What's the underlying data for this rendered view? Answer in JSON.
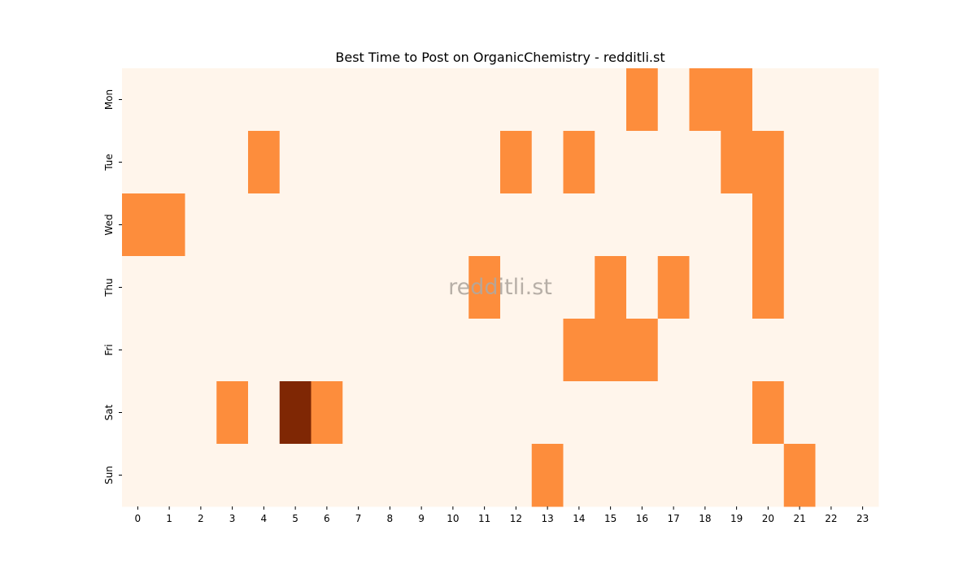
{
  "chart_data": {
    "type": "heatmap",
    "title": "Best Time to Post on OrganicChemistry - redditli.st",
    "watermark": "redditli.st",
    "x_categories": [
      "0",
      "1",
      "2",
      "3",
      "4",
      "5",
      "6",
      "7",
      "8",
      "9",
      "10",
      "11",
      "12",
      "13",
      "14",
      "15",
      "16",
      "17",
      "18",
      "19",
      "20",
      "21",
      "22",
      "23"
    ],
    "y_categories": [
      "Mon",
      "Tue",
      "Wed",
      "Thu",
      "Fri",
      "Sat",
      "Sun"
    ],
    "values": [
      [
        0,
        0,
        0,
        0,
        0,
        0,
        0,
        0,
        0,
        0,
        0,
        0,
        0,
        0,
        0,
        0,
        1,
        0,
        1,
        1,
        0,
        0,
        0,
        0
      ],
      [
        0,
        0,
        0,
        0,
        1,
        0,
        0,
        0,
        0,
        0,
        0,
        0,
        1,
        0,
        1,
        0,
        0,
        0,
        0,
        1,
        1,
        0,
        0,
        0
      ],
      [
        1,
        1,
        0,
        0,
        0,
        0,
        0,
        0,
        0,
        0,
        0,
        0,
        0,
        0,
        0,
        0,
        0,
        0,
        0,
        0,
        1,
        0,
        0,
        0
      ],
      [
        0,
        0,
        0,
        0,
        0,
        0,
        0,
        0,
        0,
        0,
        0,
        1,
        0,
        0,
        0,
        1,
        0,
        1,
        0,
        0,
        1,
        0,
        0,
        0
      ],
      [
        0,
        0,
        0,
        0,
        0,
        0,
        0,
        0,
        0,
        0,
        0,
        0,
        0,
        0,
        1,
        1,
        1,
        0,
        0,
        0,
        0,
        0,
        0,
        0
      ],
      [
        0,
        0,
        0,
        1,
        0,
        2,
        1,
        0,
        0,
        0,
        0,
        0,
        0,
        0,
        0,
        0,
        0,
        0,
        0,
        0,
        1,
        0,
        0,
        0
      ],
      [
        0,
        0,
        0,
        0,
        0,
        0,
        0,
        0,
        0,
        0,
        0,
        0,
        0,
        1,
        0,
        0,
        0,
        0,
        0,
        0,
        0,
        1,
        0,
        0
      ]
    ],
    "color_scale": {
      "0": "#fff5eb",
      "1": "#fd8d3c",
      "2": "#7f2704"
    },
    "xlabel": "",
    "ylabel": ""
  }
}
